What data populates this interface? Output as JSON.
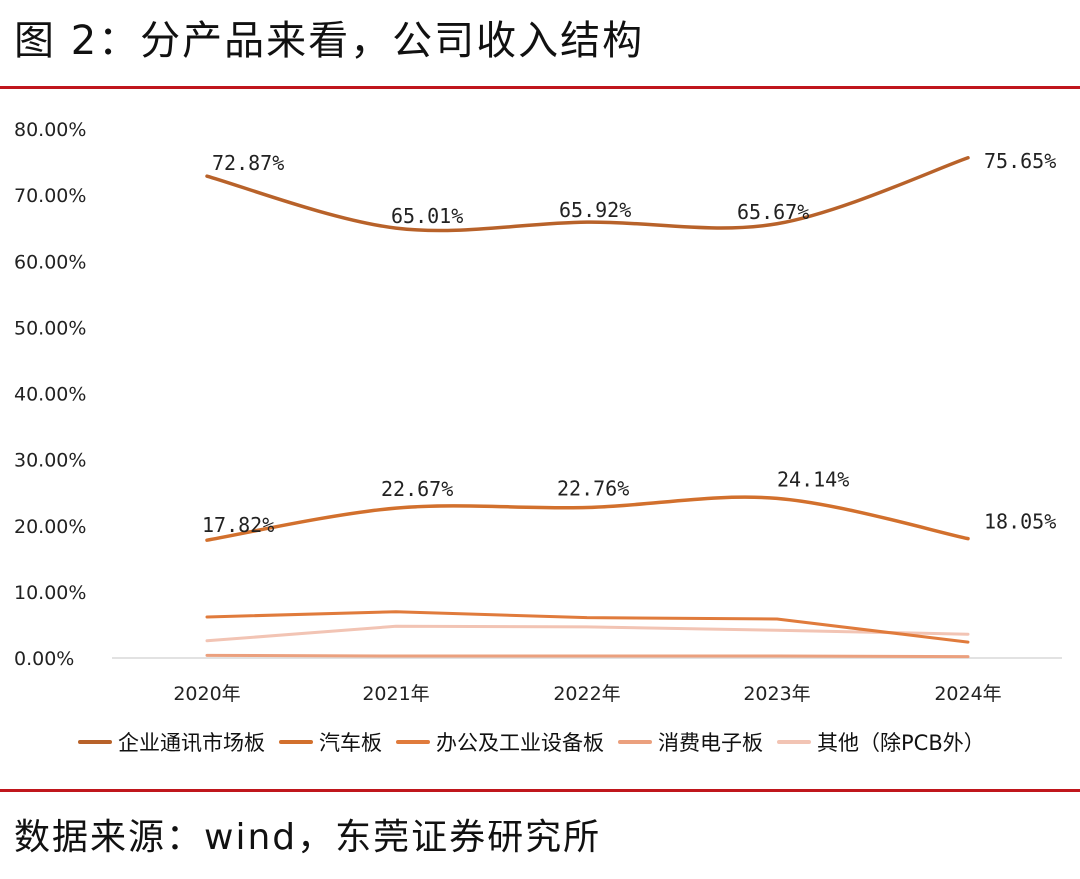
{
  "figure_title": "图 2：分产品来看，公司收入结构",
  "source": "数据来源：wind，东莞证券研究所",
  "chart_data": {
    "type": "line",
    "title": "",
    "xlabel": "",
    "ylabel": "",
    "categories": [
      "2020年",
      "2021年",
      "2022年",
      "2023年",
      "2024年"
    ],
    "y_ticks": [
      "0.00%",
      "10.00%",
      "20.00%",
      "30.00%",
      "40.00%",
      "50.00%",
      "60.00%",
      "70.00%",
      "80.00%"
    ],
    "ylim": [
      0,
      80
    ],
    "legend_position": "bottom",
    "series": [
      {
        "name": "企业通讯市场板",
        "color": "#b8622a",
        "values": [
          72.87,
          65.01,
          65.92,
          65.67,
          75.65
        ],
        "labels": [
          "72.87%",
          "65.01%",
          "65.92%",
          "65.67%",
          "75.65%"
        ]
      },
      {
        "name": "汽车板",
        "color": "#d2702d",
        "values": [
          17.82,
          22.67,
          22.76,
          24.14,
          18.05
        ],
        "labels": [
          "17.82%",
          "22.67%",
          "22.76%",
          "24.14%",
          "18.05%"
        ]
      },
      {
        "name": "办公及工业设备板",
        "color": "#e07b3c",
        "values": [
          6.2,
          7.0,
          6.1,
          5.9,
          2.4
        ]
      },
      {
        "name": "消费电子板",
        "color": "#eba07e",
        "values": [
          0.4,
          0.3,
          0.3,
          0.3,
          0.2
        ]
      },
      {
        "name": "其他（除PCB外）",
        "color": "#f2c4b4",
        "values": [
          2.6,
          4.8,
          4.7,
          4.2,
          3.6
        ]
      }
    ]
  }
}
